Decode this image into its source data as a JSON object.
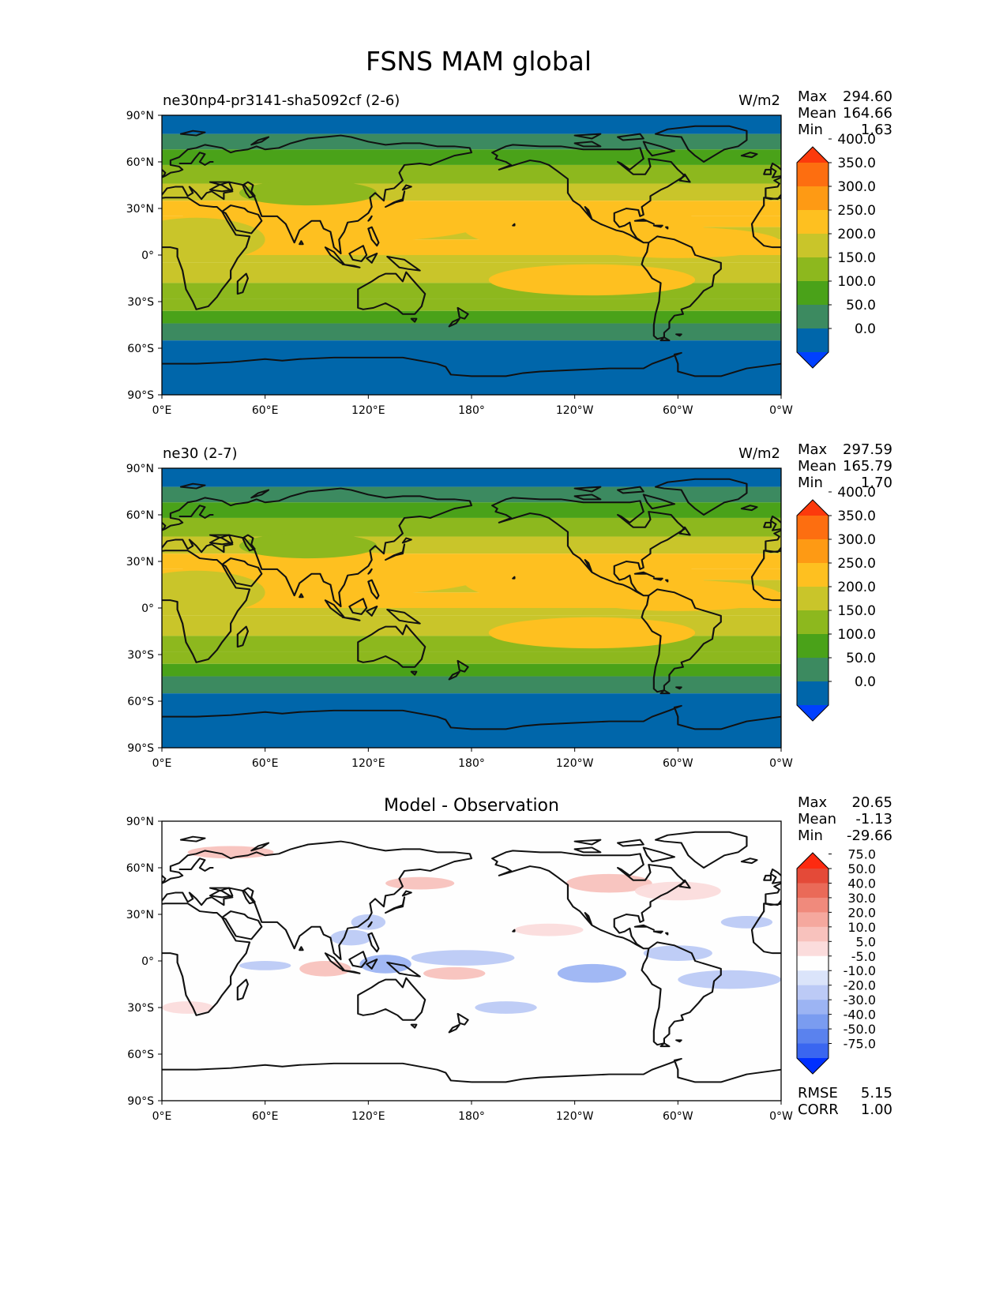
{
  "figure_title": "FSNS MAM global",
  "colors": {
    "model_levels": [
      "#0040ff",
      "#0066aa",
      "#3c8a60",
      "#4aa219",
      "#8db81e",
      "#c9c52a",
      "#fec020",
      "#fe9a14",
      "#fd6e10",
      "#fc3a0c"
    ],
    "diff_levels": [
      "#0030ff",
      "#3a66f0",
      "#5a82ee",
      "#7a9cf0",
      "#9cb4f3",
      "#bccaf6",
      "#dbe4fa",
      "#fefefe",
      "#fbdcdc",
      "#f8c2bd",
      "#f5a89e",
      "#f08a7c",
      "#ea6a58",
      "#e44a38",
      "#fd2a10"
    ],
    "ocean_deep": "#0066aa",
    "coast": "#111111"
  },
  "chart_data": [
    {
      "type": "heatmap",
      "panel": "model",
      "left_title": "ne30np4-pr3141-sha5092cf (2-6)",
      "units": "W/m2",
      "stats": [
        {
          "label": "Max",
          "value": "294.60"
        },
        {
          "label": "Mean",
          "value": "164.66"
        },
        {
          "label": "Min",
          "value": "1.63"
        }
      ],
      "levels": [
        "0.0",
        "50.0",
        "100.0",
        "150.0",
        "200.0",
        "250.0",
        "300.0",
        "350.0",
        "400.0"
      ],
      "x_ticks": [
        "0°E",
        "60°E",
        "120°E",
        "180°",
        "120°W",
        "60°W",
        "0°W"
      ],
      "y_ticks": [
        "90°N",
        "60°N",
        "30°N",
        "0°",
        "30°S",
        "60°S",
        "90°S"
      ],
      "xlim": [
        0,
        360
      ],
      "ylim": [
        -90,
        90
      ]
    },
    {
      "type": "heatmap",
      "panel": "reference",
      "left_title": "ne30 (2-7)",
      "units": "W/m2",
      "stats": [
        {
          "label": "Max",
          "value": "297.59"
        },
        {
          "label": "Mean",
          "value": "165.79"
        },
        {
          "label": "Min",
          "value": "1.70"
        }
      ],
      "levels": [
        "0.0",
        "50.0",
        "100.0",
        "150.0",
        "200.0",
        "250.0",
        "300.0",
        "350.0",
        "400.0"
      ],
      "x_ticks": [
        "0°E",
        "60°E",
        "120°E",
        "180°",
        "120°W",
        "60°W",
        "0°W"
      ],
      "y_ticks": [
        "90°N",
        "60°N",
        "30°N",
        "0°",
        "30°S",
        "60°S",
        "90°S"
      ],
      "xlim": [
        0,
        360
      ],
      "ylim": [
        -90,
        90
      ]
    },
    {
      "type": "heatmap",
      "panel": "difference",
      "center_title": "Model - Observation",
      "stats": [
        {
          "label": "Max",
          "value": "20.65"
        },
        {
          "label": "Mean",
          "value": "-1.13"
        },
        {
          "label": "Min",
          "value": "-29.66"
        }
      ],
      "levels": [
        "-75.0",
        "-50.0",
        "-40.0",
        "-30.0",
        "-20.0",
        "-10.0",
        "-5.0",
        "5.0",
        "10.0",
        "20.0",
        "30.0",
        "40.0",
        "50.0",
        "75.0"
      ],
      "x_ticks": [
        "0°E",
        "60°E",
        "120°E",
        "180°",
        "120°W",
        "60°W",
        "0°W"
      ],
      "y_ticks": [
        "90°N",
        "60°N",
        "30°N",
        "0°",
        "30°S",
        "60°S",
        "90°S"
      ],
      "metrics": [
        {
          "label": "RMSE",
          "value": "5.15"
        },
        {
          "label": "CORR",
          "value": "1.00"
        }
      ],
      "xlim": [
        0,
        360
      ],
      "ylim": [
        -90,
        90
      ]
    }
  ]
}
